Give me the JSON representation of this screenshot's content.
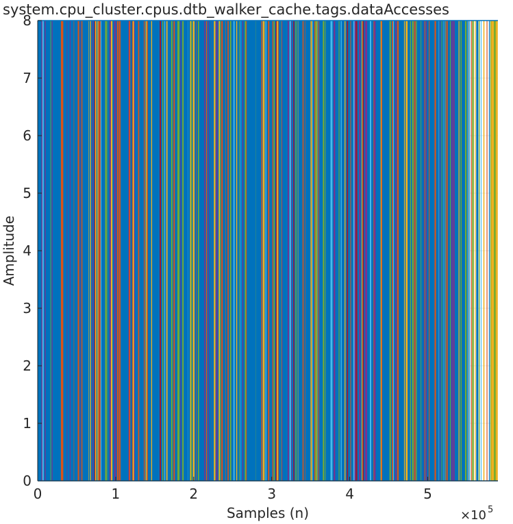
{
  "chart_data": {
    "type": "line",
    "title": "system.cpu_cluster.cpus.dtb_walker_cache.tags.dataAccesses",
    "xlabel": "Samples (n)",
    "ylabel": "Amplitude",
    "xlim": [
      0,
      590000
    ],
    "ylim": [
      0,
      8
    ],
    "x_ticks": [
      0,
      100000,
      200000,
      300000,
      400000,
      500000
    ],
    "x_tick_labels": [
      "0",
      "1",
      "2",
      "3",
      "4",
      "5"
    ],
    "x_multiplier_base": "×10",
    "x_multiplier_exp": "5",
    "y_ticks": [
      0,
      1,
      2,
      3,
      4,
      5,
      6,
      7,
      8
    ],
    "y_tick_labels": [
      "0",
      "1",
      "2",
      "3",
      "4",
      "5",
      "6",
      "7",
      "8"
    ],
    "grid": true,
    "series_description": "Dense binary-like signal switching between 0 and 8 across the full sample range, plotted in alternating MATLAB default colors",
    "levels": [
      0,
      8
    ],
    "sample_count": 590000,
    "colors": [
      "#0072BD",
      "#D95319",
      "#EDB120",
      "#7E2F8E",
      "#77AC30",
      "#4DBEEE",
      "#A2142F"
    ],
    "dominant_color": "#0072BD"
  }
}
